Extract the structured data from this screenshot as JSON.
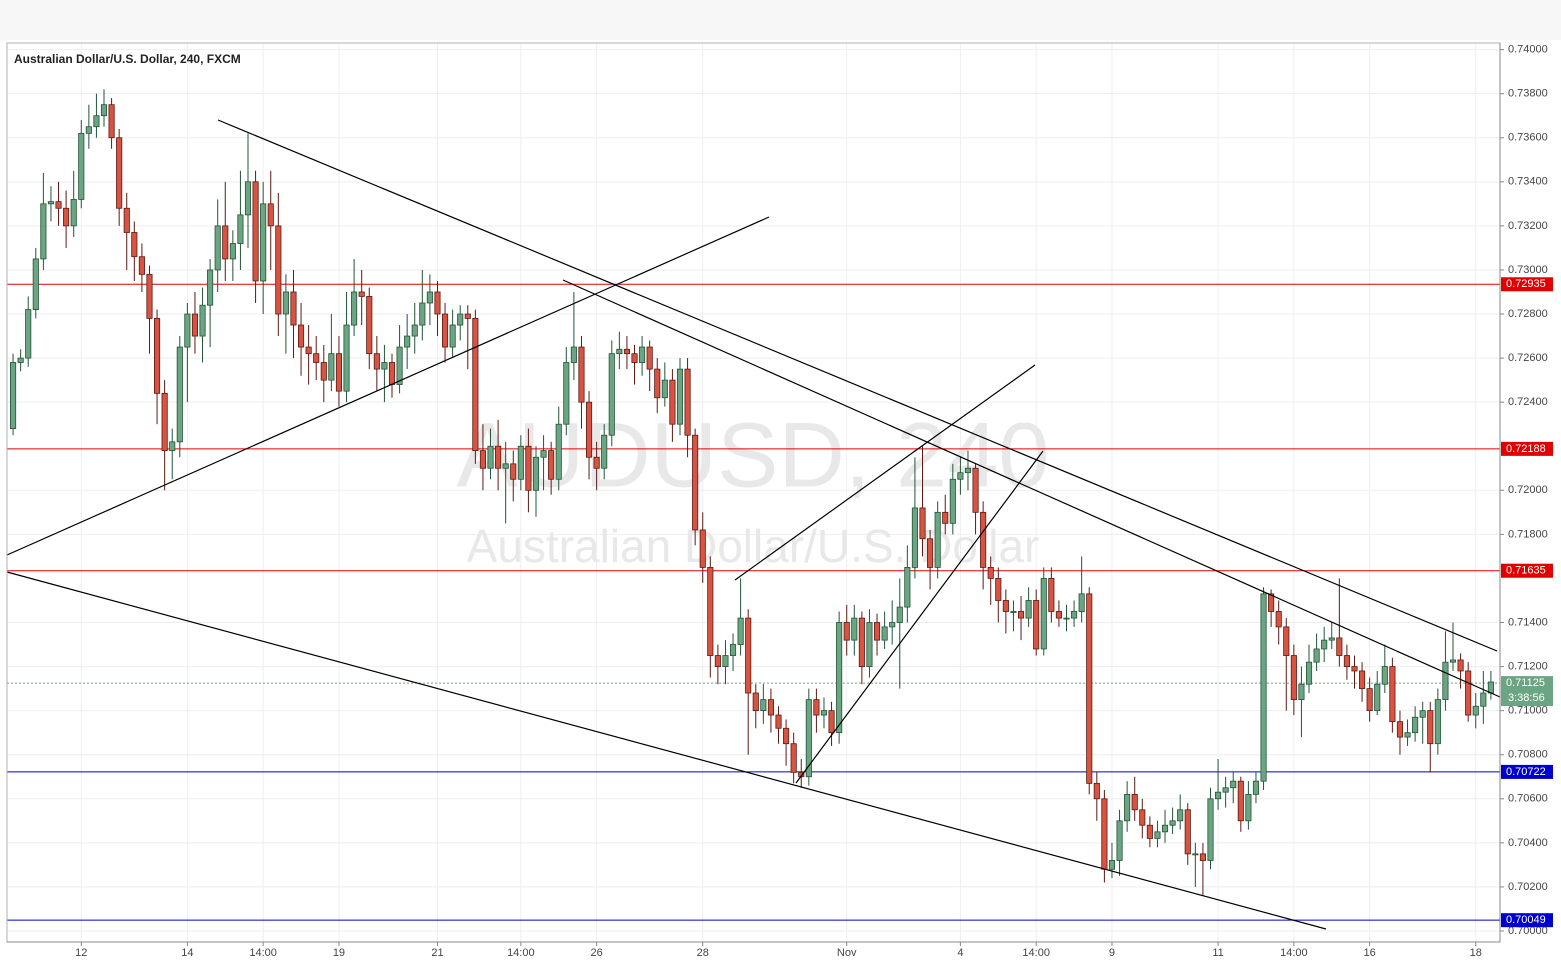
{
  "chart_data": {
    "type": "candlestick",
    "title": "Australian Dollar/U.S. Dollar, 240, FXCM",
    "watermark": "AUDUSD, 240",
    "watermark_subtitle": "Australian Dollar/U.S. Dollar",
    "up_color": "#6ba583",
    "down_color": "#d75442",
    "grid": true,
    "xlim": [
      -0.8,
      196.2
    ],
    "ylim": [
      0.6995,
      0.7403
    ],
    "xticks": [
      {
        "value": 9,
        "label": "12"
      },
      {
        "value": 23,
        "label": "14"
      },
      {
        "value": 33,
        "label": "14:00"
      },
      {
        "value": 43,
        "label": "19"
      },
      {
        "value": 56,
        "label": "21"
      },
      {
        "value": 67,
        "label": "14:00"
      },
      {
        "value": 77,
        "label": "26"
      },
      {
        "value": 91,
        "label": "28"
      },
      {
        "value": 110,
        "label": "Nov"
      },
      {
        "value": 125,
        "label": "4"
      },
      {
        "value": 135,
        "label": "14:00"
      },
      {
        "value": 145,
        "label": "9"
      },
      {
        "value": 159,
        "label": "11"
      },
      {
        "value": 169,
        "label": "14:00"
      },
      {
        "value": 179,
        "label": "16"
      },
      {
        "value": 193,
        "label": "18"
      }
    ],
    "yticks": [
      {
        "value": 0.74,
        "label": "0.74000"
      },
      {
        "value": 0.738,
        "label": "0.73800"
      },
      {
        "value": 0.736,
        "label": "0.73600"
      },
      {
        "value": 0.734,
        "label": "0.73400"
      },
      {
        "value": 0.732,
        "label": "0.73200"
      },
      {
        "value": 0.73,
        "label": "0.73000"
      },
      {
        "value": 0.728,
        "label": "0.72800"
      },
      {
        "value": 0.726,
        "label": "0.72600"
      },
      {
        "value": 0.724,
        "label": "0.72400"
      },
      {
        "value": 0.72,
        "label": "0.72000"
      },
      {
        "value": 0.718,
        "label": "0.71800"
      },
      {
        "value": 0.714,
        "label": "0.71400"
      },
      {
        "value": 0.712,
        "label": "0.71200"
      },
      {
        "value": 0.71,
        "label": "0.71000"
      },
      {
        "value": 0.708,
        "label": "0.70800"
      },
      {
        "value": 0.706,
        "label": "0.70600"
      },
      {
        "value": 0.704,
        "label": "0.70400"
      },
      {
        "value": 0.702,
        "label": "0.70200"
      },
      {
        "value": 0.7,
        "label": "0.70000"
      }
    ],
    "levels": [
      {
        "value": 0.72935,
        "color": "#e00000"
      },
      {
        "value": 0.72188,
        "color": "#e00000"
      },
      {
        "value": 0.71635,
        "color": "#e00000"
      },
      {
        "value": 0.70722,
        "color": "#0000cc"
      },
      {
        "value": 0.70049,
        "color": "#0000cc"
      }
    ],
    "current_price": {
      "value": 0.71125,
      "countdown": "3:38:56",
      "color": "#6ba583"
    },
    "candles": [
      [
        0.7228,
        0.7262,
        0.7225,
        0.7258
      ],
      [
        0.7258,
        0.7264,
        0.7254,
        0.726
      ],
      [
        0.726,
        0.7288,
        0.7256,
        0.7282
      ],
      [
        0.7282,
        0.731,
        0.7278,
        0.7305
      ],
      [
        0.7305,
        0.7344,
        0.73,
        0.733
      ],
      [
        0.733,
        0.7338,
        0.7322,
        0.7331
      ],
      [
        0.7331,
        0.734,
        0.732,
        0.7328
      ],
      [
        0.7328,
        0.7336,
        0.731,
        0.732
      ],
      [
        0.732,
        0.7345,
        0.7315,
        0.7332
      ],
      [
        0.7332,
        0.7368,
        0.7328,
        0.7362
      ],
      [
        0.7362,
        0.7375,
        0.7355,
        0.7365
      ],
      [
        0.7365,
        0.738,
        0.736,
        0.737
      ],
      [
        0.737,
        0.7382,
        0.7365,
        0.7375
      ],
      [
        0.7375,
        0.7378,
        0.7355,
        0.736
      ],
      [
        0.736,
        0.7364,
        0.732,
        0.7328
      ],
      [
        0.7328,
        0.7335,
        0.73,
        0.7317
      ],
      [
        0.7317,
        0.7322,
        0.7295,
        0.7306
      ],
      [
        0.7306,
        0.7312,
        0.729,
        0.7298
      ],
      [
        0.7298,
        0.7302,
        0.7262,
        0.7278
      ],
      [
        0.7278,
        0.7282,
        0.723,
        0.7244
      ],
      [
        0.7244,
        0.725,
        0.72,
        0.7218
      ],
      [
        0.7218,
        0.7228,
        0.7205,
        0.7222
      ],
      [
        0.7222,
        0.727,
        0.7215,
        0.7265
      ],
      [
        0.7265,
        0.7285,
        0.724,
        0.728
      ],
      [
        0.728,
        0.729,
        0.7262,
        0.727
      ],
      [
        0.727,
        0.7292,
        0.7258,
        0.7284
      ],
      [
        0.7284,
        0.7305,
        0.7265,
        0.73
      ],
      [
        0.73,
        0.7332,
        0.729,
        0.732
      ],
      [
        0.732,
        0.734,
        0.7295,
        0.7305
      ],
      [
        0.7305,
        0.7318,
        0.7295,
        0.7312
      ],
      [
        0.7312,
        0.7345,
        0.73,
        0.7325
      ],
      [
        0.7325,
        0.7362,
        0.731,
        0.734
      ],
      [
        0.734,
        0.7345,
        0.7285,
        0.7295
      ],
      [
        0.7295,
        0.734,
        0.728,
        0.733
      ],
      [
        0.733,
        0.7345,
        0.73,
        0.732
      ],
      [
        0.732,
        0.7335,
        0.727,
        0.728
      ],
      [
        0.728,
        0.7298,
        0.7262,
        0.729
      ],
      [
        0.729,
        0.73,
        0.726,
        0.7275
      ],
      [
        0.7275,
        0.7285,
        0.7252,
        0.7265
      ],
      [
        0.7265,
        0.7275,
        0.7248,
        0.7262
      ],
      [
        0.7262,
        0.727,
        0.725,
        0.7258
      ],
      [
        0.7258,
        0.7266,
        0.724,
        0.725
      ],
      [
        0.725,
        0.728,
        0.7245,
        0.7262
      ],
      [
        0.7262,
        0.727,
        0.7238,
        0.7245
      ],
      [
        0.7245,
        0.729,
        0.724,
        0.7275
      ],
      [
        0.7275,
        0.7305,
        0.727,
        0.729
      ],
      [
        0.729,
        0.73,
        0.7275,
        0.7288
      ],
      [
        0.7288,
        0.7292,
        0.7255,
        0.7262
      ],
      [
        0.7262,
        0.727,
        0.7245,
        0.7255
      ],
      [
        0.7255,
        0.7266,
        0.724,
        0.7258
      ],
      [
        0.7258,
        0.7262,
        0.7242,
        0.7248
      ],
      [
        0.7248,
        0.7275,
        0.7244,
        0.7265
      ],
      [
        0.7265,
        0.728,
        0.7255,
        0.727
      ],
      [
        0.727,
        0.7285,
        0.7262,
        0.7275
      ],
      [
        0.7275,
        0.73,
        0.7268,
        0.7285
      ],
      [
        0.7285,
        0.7298,
        0.7275,
        0.729
      ],
      [
        0.729,
        0.7295,
        0.727,
        0.728
      ],
      [
        0.728,
        0.7285,
        0.7258,
        0.7265
      ],
      [
        0.7265,
        0.7282,
        0.726,
        0.7275
      ],
      [
        0.7275,
        0.7284,
        0.7268,
        0.728
      ],
      [
        0.728,
        0.7284,
        0.7255,
        0.7278
      ],
      [
        0.7278,
        0.7282,
        0.7212,
        0.7218
      ],
      [
        0.7218,
        0.723,
        0.72,
        0.721
      ],
      [
        0.721,
        0.7228,
        0.7205,
        0.722
      ],
      [
        0.722,
        0.7232,
        0.72,
        0.721
      ],
      [
        0.721,
        0.7222,
        0.7185,
        0.7212
      ],
      [
        0.7212,
        0.7218,
        0.7195,
        0.7205
      ],
      [
        0.7205,
        0.7225,
        0.72,
        0.722
      ],
      [
        0.722,
        0.7228,
        0.719,
        0.72
      ],
      [
        0.72,
        0.722,
        0.7188,
        0.7215
      ],
      [
        0.7215,
        0.7225,
        0.72,
        0.7218
      ],
      [
        0.7218,
        0.7222,
        0.7198,
        0.7205
      ],
      [
        0.7205,
        0.7238,
        0.72,
        0.723
      ],
      [
        0.723,
        0.7265,
        0.7225,
        0.7258
      ],
      [
        0.7258,
        0.729,
        0.725,
        0.7265
      ],
      [
        0.7265,
        0.727,
        0.7228,
        0.724
      ],
      [
        0.724,
        0.7245,
        0.7205,
        0.7215
      ],
      [
        0.7215,
        0.7222,
        0.72,
        0.721
      ],
      [
        0.721,
        0.723,
        0.7205,
        0.7225
      ],
      [
        0.7225,
        0.7268,
        0.722,
        0.7262
      ],
      [
        0.7262,
        0.7272,
        0.7255,
        0.7264
      ],
      [
        0.7264,
        0.727,
        0.7255,
        0.7262
      ],
      [
        0.7262,
        0.7266,
        0.7248,
        0.7258
      ],
      [
        0.7258,
        0.727,
        0.7252,
        0.7265
      ],
      [
        0.7265,
        0.7268,
        0.7245,
        0.7255
      ],
      [
        0.7255,
        0.726,
        0.7235,
        0.7242
      ],
      [
        0.7242,
        0.7258,
        0.7238,
        0.725
      ],
      [
        0.725,
        0.7255,
        0.7222,
        0.723
      ],
      [
        0.723,
        0.726,
        0.7225,
        0.7255
      ],
      [
        0.7255,
        0.726,
        0.7215,
        0.7225
      ],
      [
        0.7225,
        0.7228,
        0.7175,
        0.7182
      ],
      [
        0.7182,
        0.719,
        0.7158,
        0.7165
      ],
      [
        0.7165,
        0.717,
        0.7115,
        0.7125
      ],
      [
        0.7125,
        0.713,
        0.7112,
        0.712
      ],
      [
        0.712,
        0.7132,
        0.7112,
        0.7125
      ],
      [
        0.7125,
        0.7135,
        0.7118,
        0.713
      ],
      [
        0.713,
        0.716,
        0.7125,
        0.7142
      ],
      [
        0.7142,
        0.7146,
        0.708,
        0.7108
      ],
      [
        0.7108,
        0.7112,
        0.7092,
        0.71
      ],
      [
        0.71,
        0.7112,
        0.7094,
        0.7105
      ],
      [
        0.7105,
        0.711,
        0.709,
        0.7098
      ],
      [
        0.7098,
        0.7102,
        0.7085,
        0.7092
      ],
      [
        0.7092,
        0.7096,
        0.7075,
        0.7085
      ],
      [
        0.7085,
        0.709,
        0.7067,
        0.7072
      ],
      [
        0.7072,
        0.7078,
        0.7065,
        0.707
      ],
      [
        0.707,
        0.711,
        0.7066,
        0.7105
      ],
      [
        0.7105,
        0.711,
        0.709,
        0.7098
      ],
      [
        0.7098,
        0.7106,
        0.7092,
        0.71
      ],
      [
        0.71,
        0.7104,
        0.7084,
        0.709
      ],
      [
        0.709,
        0.7145,
        0.7085,
        0.714
      ],
      [
        0.714,
        0.7148,
        0.7125,
        0.7132
      ],
      [
        0.7132,
        0.7148,
        0.7125,
        0.7142
      ],
      [
        0.7142,
        0.7145,
        0.7112,
        0.712
      ],
      [
        0.712,
        0.7146,
        0.7115,
        0.714
      ],
      [
        0.714,
        0.7144,
        0.7125,
        0.7132
      ],
      [
        0.7132,
        0.7145,
        0.7128,
        0.7138
      ],
      [
        0.7138,
        0.715,
        0.713,
        0.714
      ],
      [
        0.714,
        0.716,
        0.711,
        0.7147
      ],
      [
        0.7147,
        0.7175,
        0.714,
        0.7165
      ],
      [
        0.7165,
        0.7215,
        0.716,
        0.7192
      ],
      [
        0.7192,
        0.722,
        0.717,
        0.7178
      ],
      [
        0.7178,
        0.7182,
        0.7155,
        0.7165
      ],
      [
        0.7165,
        0.7195,
        0.716,
        0.719
      ],
      [
        0.719,
        0.7198,
        0.718,
        0.7185
      ],
      [
        0.7185,
        0.7212,
        0.718,
        0.7205
      ],
      [
        0.7205,
        0.7215,
        0.7198,
        0.7208
      ],
      [
        0.7208,
        0.7218,
        0.72,
        0.721
      ],
      [
        0.721,
        0.7212,
        0.718,
        0.719
      ],
      [
        0.719,
        0.7195,
        0.7155,
        0.7165
      ],
      [
        0.7165,
        0.717,
        0.7148,
        0.716
      ],
      [
        0.716,
        0.7165,
        0.714,
        0.715
      ],
      [
        0.715,
        0.7155,
        0.7135,
        0.7145
      ],
      [
        0.7145,
        0.715,
        0.7136,
        0.7145
      ],
      [
        0.7145,
        0.7152,
        0.7132,
        0.7142
      ],
      [
        0.7142,
        0.7156,
        0.7138,
        0.715
      ],
      [
        0.715,
        0.7155,
        0.7125,
        0.7128
      ],
      [
        0.7128,
        0.7165,
        0.7125,
        0.716
      ],
      [
        0.716,
        0.7165,
        0.714,
        0.7145
      ],
      [
        0.7145,
        0.715,
        0.7138,
        0.7142
      ],
      [
        0.7142,
        0.7148,
        0.7136,
        0.7142
      ],
      [
        0.7142,
        0.715,
        0.7138,
        0.7145
      ],
      [
        0.7145,
        0.717,
        0.714,
        0.7153
      ],
      [
        0.7153,
        0.7156,
        0.7062,
        0.7067
      ],
      [
        0.7067,
        0.7072,
        0.705,
        0.706
      ],
      [
        0.706,
        0.7064,
        0.7022,
        0.7028
      ],
      [
        0.7028,
        0.704,
        0.7024,
        0.7032
      ],
      [
        0.7032,
        0.7055,
        0.7025,
        0.705
      ],
      [
        0.705,
        0.7068,
        0.7045,
        0.7062
      ],
      [
        0.7062,
        0.707,
        0.705,
        0.7055
      ],
      [
        0.7055,
        0.706,
        0.7042,
        0.7048
      ],
      [
        0.7048,
        0.7052,
        0.7038,
        0.7042
      ],
      [
        0.7042,
        0.705,
        0.7038,
        0.7045
      ],
      [
        0.7045,
        0.7055,
        0.704,
        0.7048
      ],
      [
        0.7048,
        0.7056,
        0.7044,
        0.705
      ],
      [
        0.705,
        0.7062,
        0.7046,
        0.7055
      ],
      [
        0.7055,
        0.7058,
        0.703,
        0.7035
      ],
      [
        0.7035,
        0.704,
        0.702,
        0.7035
      ],
      [
        0.7035,
        0.704,
        0.7016,
        0.7032
      ],
      [
        0.7032,
        0.7065,
        0.7028,
        0.706
      ],
      [
        0.706,
        0.7078,
        0.7055,
        0.7063
      ],
      [
        0.7063,
        0.707,
        0.7056,
        0.7065
      ],
      [
        0.7065,
        0.7072,
        0.7058,
        0.7068
      ],
      [
        0.7068,
        0.707,
        0.7045,
        0.705
      ],
      [
        0.705,
        0.7068,
        0.7046,
        0.7062
      ],
      [
        0.7062,
        0.7072,
        0.7058,
        0.7068
      ],
      [
        0.7068,
        0.7156,
        0.7064,
        0.7153
      ],
      [
        0.7153,
        0.7155,
        0.7138,
        0.7145
      ],
      [
        0.7145,
        0.715,
        0.713,
        0.7138
      ],
      [
        0.7138,
        0.7142,
        0.71,
        0.7125
      ],
      [
        0.7125,
        0.713,
        0.7098,
        0.7105
      ],
      [
        0.7105,
        0.712,
        0.7088,
        0.7112
      ],
      [
        0.7112,
        0.713,
        0.7108,
        0.7122
      ],
      [
        0.7122,
        0.7135,
        0.7118,
        0.7128
      ],
      [
        0.7128,
        0.7138,
        0.7122,
        0.7132
      ],
      [
        0.7132,
        0.714,
        0.7128,
        0.7133
      ],
      [
        0.7133,
        0.716,
        0.712,
        0.7125
      ],
      [
        0.7125,
        0.713,
        0.7114,
        0.712
      ],
      [
        0.712,
        0.7125,
        0.711,
        0.7118
      ],
      [
        0.7118,
        0.7122,
        0.7104,
        0.711
      ],
      [
        0.711,
        0.7115,
        0.7095,
        0.71
      ],
      [
        0.71,
        0.7118,
        0.7098,
        0.7112
      ],
      [
        0.7112,
        0.713,
        0.7108,
        0.712
      ],
      [
        0.712,
        0.7124,
        0.709,
        0.7095
      ],
      [
        0.7095,
        0.71,
        0.708,
        0.7088
      ],
      [
        0.7088,
        0.7096,
        0.7084,
        0.709
      ],
      [
        0.709,
        0.7102,
        0.7086,
        0.7097
      ],
      [
        0.7097,
        0.7104,
        0.7085,
        0.71
      ],
      [
        0.71,
        0.7104,
        0.7072,
        0.7085
      ],
      [
        0.7085,
        0.711,
        0.708,
        0.7105
      ],
      [
        0.7105,
        0.7136,
        0.71,
        0.7122
      ],
      [
        0.7122,
        0.714,
        0.7118,
        0.7123
      ],
      [
        0.7123,
        0.7126,
        0.711,
        0.7118
      ],
      [
        0.7118,
        0.7122,
        0.7095,
        0.7098
      ],
      [
        0.7098,
        0.7108,
        0.7092,
        0.7102
      ],
      [
        0.7102,
        0.7118,
        0.7094,
        0.7108
      ],
      [
        0.7108,
        0.7118,
        0.7105,
        0.7113
      ]
    ]
  }
}
